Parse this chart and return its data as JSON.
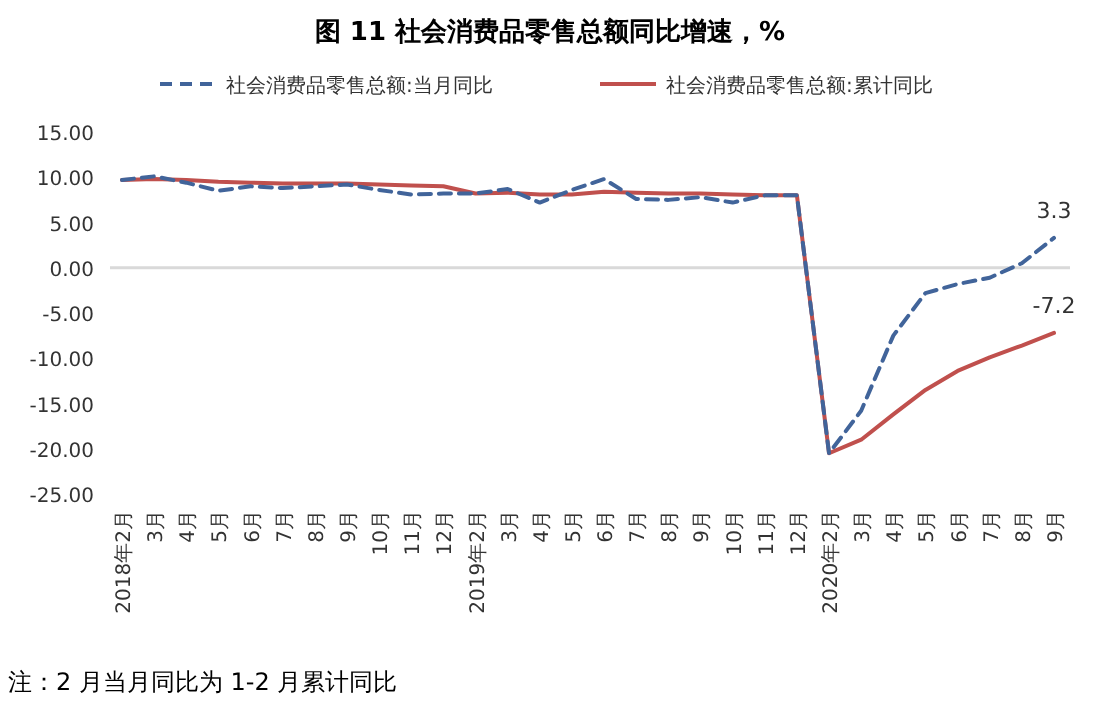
{
  "chart_data": {
    "type": "line",
    "title": "图 11    社会消费品零售总额同比增速，%",
    "categories": [
      "2018年2月",
      "3月",
      "4月",
      "5月",
      "6月",
      "7月",
      "8月",
      "9月",
      "10月",
      "11月",
      "12月",
      "2019年2月",
      "3月",
      "4月",
      "5月",
      "6月",
      "7月",
      "8月",
      "9月",
      "10月",
      "11月",
      "12月",
      "2020年2月",
      "3月",
      "4月",
      "5月",
      "6月",
      "7月",
      "8月",
      "9月"
    ],
    "series": [
      {
        "name": "社会消费品零售总额:当月同比",
        "color": "#41649a",
        "line_style": "dashed",
        "values": [
          9.7,
          10.1,
          9.4,
          8.5,
          9.0,
          8.8,
          9.0,
          9.2,
          8.6,
          8.1,
          8.2,
          8.2,
          8.7,
          7.2,
          8.6,
          9.8,
          7.6,
          7.5,
          7.8,
          7.2,
          8.0,
          8.0,
          -20.5,
          -15.8,
          -7.5,
          -2.8,
          -1.8,
          -1.1,
          0.5,
          3.3
        ],
        "value_labels": [
          null,
          null,
          null,
          null,
          null,
          null,
          null,
          null,
          null,
          null,
          null,
          null,
          null,
          null,
          null,
          null,
          null,
          null,
          null,
          null,
          null,
          null,
          null,
          null,
          null,
          null,
          null,
          null,
          null,
          "3.3"
        ]
      },
      {
        "name": "社会消费品零售总额:累计同比",
        "color": "#c0504d",
        "line_style": "solid",
        "values": [
          9.7,
          9.8,
          9.7,
          9.5,
          9.4,
          9.3,
          9.3,
          9.3,
          9.2,
          9.1,
          9.0,
          8.2,
          8.3,
          8.1,
          8.1,
          8.4,
          8.3,
          8.2,
          8.2,
          8.1,
          8.0,
          8.0,
          -20.5,
          -19.0,
          -16.2,
          -13.5,
          -11.4,
          -9.9,
          -8.6,
          -7.2
        ],
        "value_labels": [
          null,
          null,
          null,
          null,
          null,
          null,
          null,
          null,
          null,
          null,
          null,
          null,
          null,
          null,
          null,
          null,
          null,
          null,
          null,
          null,
          null,
          null,
          null,
          null,
          null,
          null,
          null,
          null,
          null,
          "-7.2"
        ]
      }
    ],
    "ylim": [
      -25,
      15
    ],
    "yticks": [
      {
        "value": 15,
        "label": "15.00"
      },
      {
        "value": 10,
        "label": "10.00"
      },
      {
        "value": 5,
        "label": "5.00"
      },
      {
        "value": 0,
        "label": "0.00"
      },
      {
        "value": -5,
        "label": "-5.00"
      },
      {
        "value": -10,
        "label": "-10.00"
      },
      {
        "value": -15,
        "label": "-15.00"
      },
      {
        "value": -20,
        "label": "-20.00"
      },
      {
        "value": -25,
        "label": "-25.00"
      }
    ],
    "grid": false,
    "ref_lines": [
      {
        "axis": "y",
        "value": 0,
        "color": "#d9d9d9"
      }
    ],
    "legend": "top",
    "marker": "none",
    "annotations": [
      "注：2 月当月同比为 1-2 月累计同比"
    ]
  }
}
